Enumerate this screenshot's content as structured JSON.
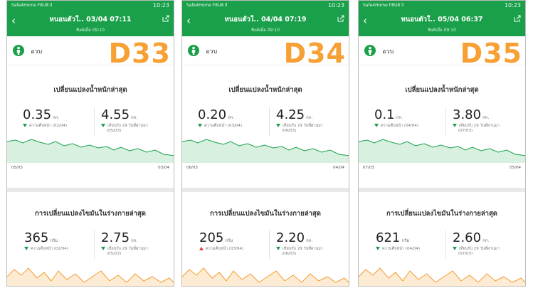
{
  "status": {
    "left": "Safe4Home F8U8 ll",
    "signal": "8/s",
    "time": "10:23"
  },
  "user": {
    "name": "อวบ"
  },
  "sections": {
    "weight_title": "เปลี่ยนแปลงน้ำหนักล่าสุด",
    "fat_title": "การเปลี่ยนแปลงไขมันในร่างกายล่าสุด"
  },
  "colors": {
    "header": "#1aa04a",
    "weight_line": "#1aa04a",
    "fat_line": "#f39c2f",
    "day_label": "#f7a034"
  },
  "icons": {
    "back": "chevron-left-icon",
    "share": "share-icon",
    "user": "user-icon",
    "trend_down": "triangle-down-icon",
    "trend_up": "triangle-up-icon"
  },
  "panels": [
    {
      "title": "หนอนตัวใ.. 03/04 07:11",
      "sync": "ซิงค์เมื่อ 09:10",
      "day": "D33",
      "weight": {
        "left_value": "0.35",
        "left_unit": "กก.",
        "left_caption": "ความคืบหน้า (02/04)",
        "right_value": "4.55",
        "right_unit": "กก.",
        "right_caption_1": "เทียบกับ 29 วันที่ผ่านมา",
        "right_caption_2": "(05/03)",
        "date_start": "05/03",
        "date_end": "03/04"
      },
      "fat": {
        "left_value": "365",
        "left_unit": "กรัม",
        "left_caption": "ความคืบหน้า (02/04)",
        "left_trend": "down",
        "right_value": "2.75",
        "right_unit": "กก.",
        "right_caption_1": "เทียบกับ 29 วันที่ผ่านมา",
        "right_caption_2": "(05/03)"
      }
    },
    {
      "title": "หนอนตัวใ.. 04/04 07:19",
      "sync": "ซิงค์เมื่อ 09:10",
      "day": "D34",
      "weight": {
        "left_value": "0.20",
        "left_unit": "กก.",
        "left_caption": "ความคืบหน้า (03/04)",
        "right_value": "4.25",
        "right_unit": "กก.",
        "right_caption_1": "เทียบกับ 29 วันที่ผ่านมา",
        "right_caption_2": "(06/03)",
        "date_start": "06/03",
        "date_end": "04/04"
      },
      "fat": {
        "left_value": "205",
        "left_unit": "กรัม",
        "left_caption": "ความคืบหน้า (03/04)",
        "left_trend": "up",
        "right_value": "2.20",
        "right_unit": "กก.",
        "right_caption_1": "เทียบกับ 29 วันที่ผ่านมา",
        "right_caption_2": "(06/03)"
      }
    },
    {
      "title": "หนอนตัวใ.. 05/04 06:37",
      "sync": "ซิงค์เมื่อ 09:10",
      "day": "D35",
      "weight": {
        "left_value": "0.1",
        "left_unit": "กก.",
        "left_caption": "ความคืบหน้า (04/04)",
        "right_value": "3.80",
        "right_unit": "กก.",
        "right_caption_1": "เทียบกับ 29 วันที่ผ่านมา",
        "right_caption_2": "(07/03)",
        "date_start": "07/03",
        "date_end": "05/04"
      },
      "fat": {
        "left_value": "621",
        "left_unit": "กรัม",
        "left_caption": "ความคืบหน้า (04/04)",
        "left_trend": "down",
        "right_value": "2.60",
        "right_unit": "กก.",
        "right_caption_1": "เทียบกับ 29 วันที่ผ่านมา",
        "right_caption_2": "(07/03)"
      }
    }
  ]
}
